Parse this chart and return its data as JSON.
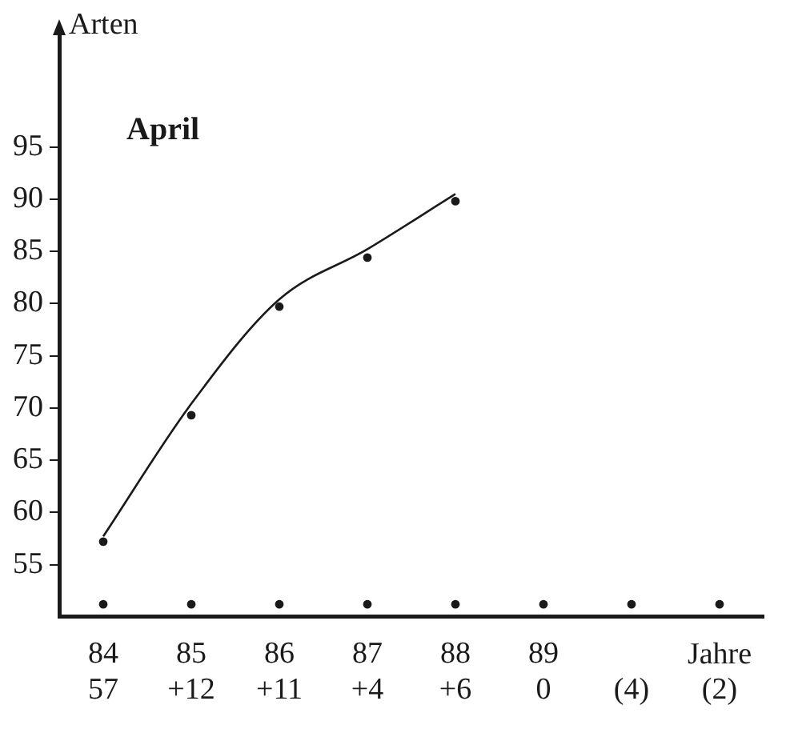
{
  "chart_data": {
    "type": "scatter",
    "title": "April",
    "ylabel": "Arten",
    "xlabel": "Jahre",
    "categories": [
      "84\n57",
      "85\n+12",
      "86\n+11",
      "87\n+4",
      "88\n+6",
      "89\n0",
      "(4)",
      "(2)"
    ],
    "series": [
      {
        "color": "#1a1a1a",
        "x": [
          "84\n57",
          "85\n+12",
          "86\n+11",
          "87\n+4",
          "88\n+6"
        ],
        "values": [
          57.2,
          69.3,
          79.7,
          84.4,
          89.8
        ]
      },
      {
        "color": "#1a1a1a",
        "values": [
          51.2,
          51.2,
          51.2,
          51.2,
          51.2,
          51.2,
          51.2,
          51.2
        ]
      },
      {
        "type": "line",
        "color": "#1a1a1a",
        "marker": "none",
        "x": [
          "84\n57",
          "85\n+12",
          "86\n+11",
          "87\n+4",
          "88\n+6"
        ],
        "values": [
          57.7,
          70.4,
          80.4,
          85.2,
          90.5
        ]
      }
    ],
    "ylim": [
      50,
      106
    ],
    "yticks": [
      55,
      60,
      65,
      70,
      75,
      80,
      85,
      90,
      95
    ],
    "grid": false,
    "legend": false,
    "marker": "circle"
  }
}
